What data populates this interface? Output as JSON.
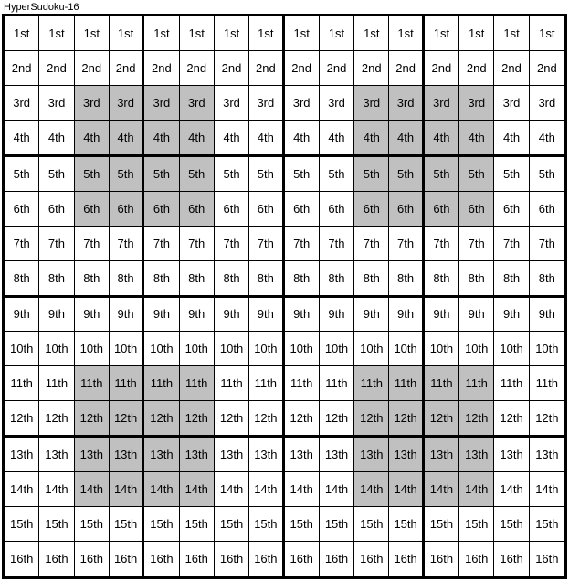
{
  "title": "HyperSudoku-16",
  "gridSize": 16,
  "rowLabels": [
    "1st",
    "2nd",
    "3rd",
    "4th",
    "5th",
    "6th",
    "7th",
    "8th",
    "9th",
    "10th",
    "11th",
    "12th",
    "13th",
    "14th",
    "15th",
    "16th"
  ],
  "thickColumnBoundaries": [
    4,
    8,
    12
  ],
  "thickRowBoundaries": [
    4,
    8,
    12
  ],
  "shadedRegions": [
    {
      "rowStart": 3,
      "rowEnd": 6,
      "colStart": 3,
      "colEnd": 6
    },
    {
      "rowStart": 3,
      "rowEnd": 6,
      "colStart": 11,
      "colEnd": 14
    },
    {
      "rowStart": 11,
      "rowEnd": 14,
      "colStart": 3,
      "colEnd": 6
    },
    {
      "rowStart": 11,
      "rowEnd": 14,
      "colStart": 11,
      "colEnd": 14
    }
  ],
  "cellFontSize": 13,
  "titleFontSize": 11,
  "shadedColor": "#c0c0c0",
  "backgroundColor": "#ffffff",
  "borderColor": "#000000",
  "gridWidth": 619,
  "gridHeight": 619
}
